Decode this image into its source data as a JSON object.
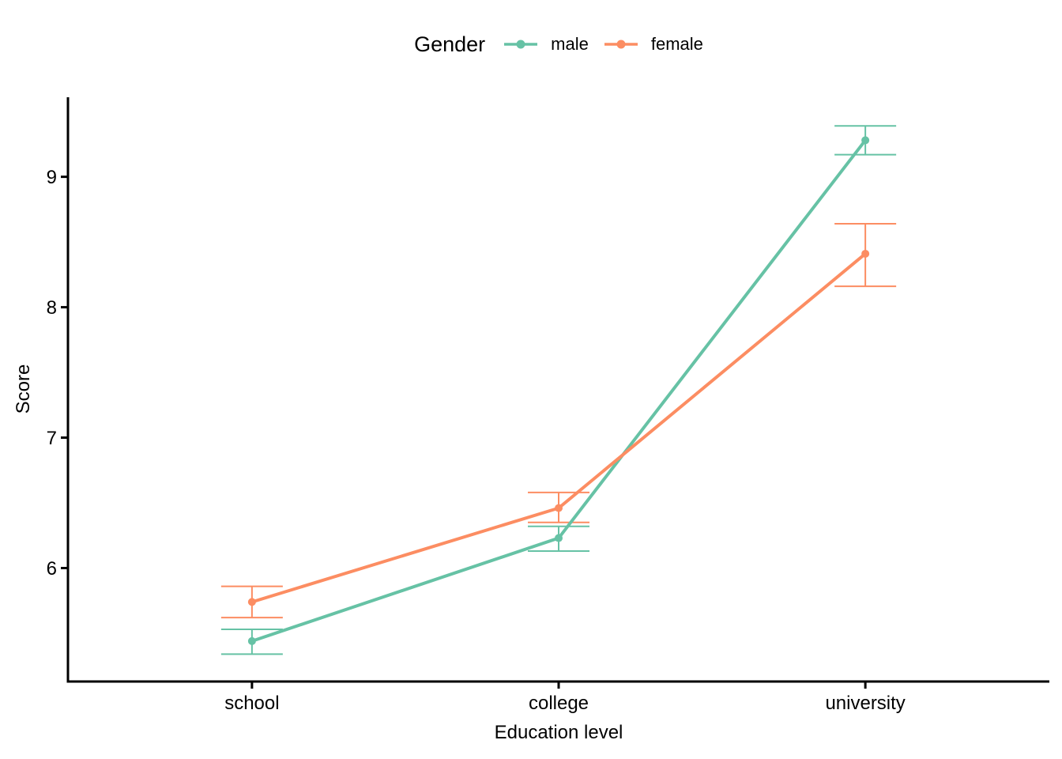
{
  "chart_data": {
    "type": "line",
    "title": "",
    "xlabel": "Education level",
    "ylabel": "Score",
    "categories": [
      "school",
      "college",
      "university"
    ],
    "series": [
      {
        "name": "male",
        "color": "#66C2A5",
        "values": [
          5.44,
          6.23,
          9.28
        ],
        "ymin": [
          5.34,
          6.13,
          9.17
        ],
        "ymax": [
          5.53,
          6.32,
          9.39
        ]
      },
      {
        "name": "female",
        "color": "#FC8D62",
        "values": [
          5.74,
          6.46,
          8.41
        ],
        "ymin": [
          5.62,
          6.35,
          8.16
        ],
        "ymax": [
          5.86,
          6.58,
          8.64
        ]
      }
    ],
    "y_ticks": [
      6,
      7,
      8,
      9
    ],
    "ylim": [
      5.13,
      9.61
    ],
    "grid": false,
    "error_bars": true,
    "legend": {
      "title": "Gender",
      "position": "top"
    },
    "axis_color": "#000000",
    "text_color": "#000000"
  }
}
